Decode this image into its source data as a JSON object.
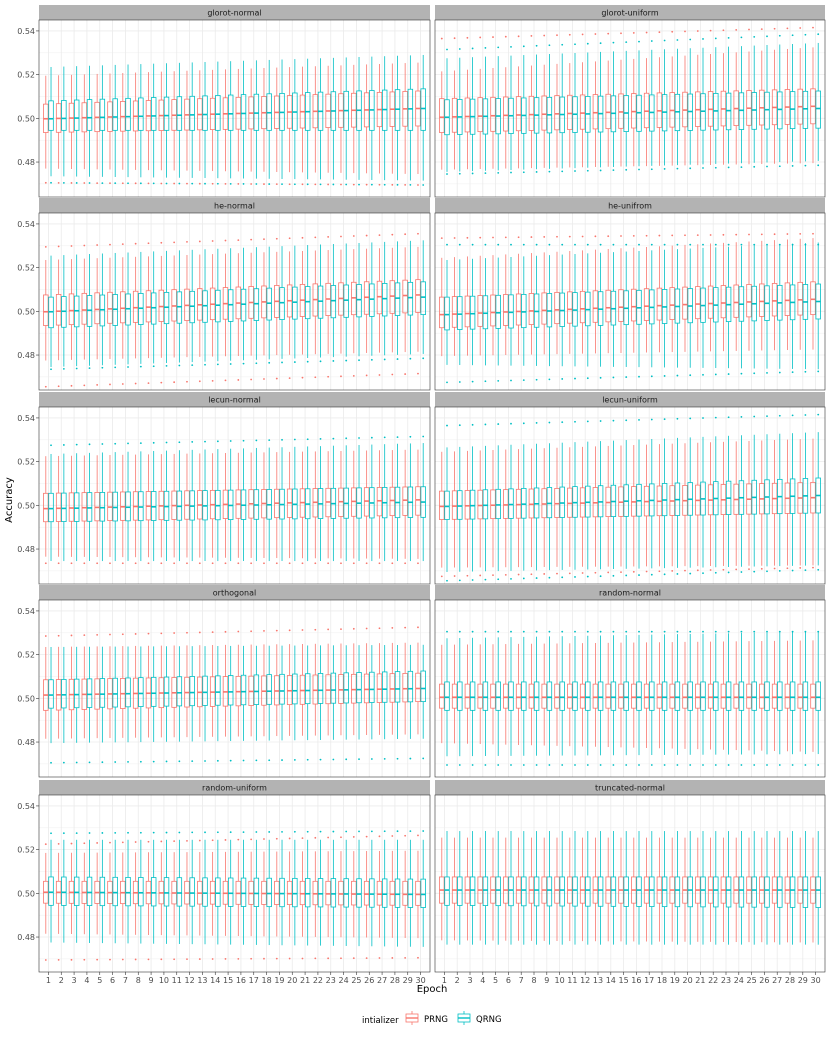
{
  "chart_data": {
    "type": "boxplot",
    "layout": "facet-grid-5x2",
    "xlabel": "Epoch",
    "ylabel": "Accuracy",
    "x_categories": [
      "1",
      "2",
      "3",
      "4",
      "5",
      "6",
      "7",
      "8",
      "9",
      "10",
      "11",
      "12",
      "13",
      "14",
      "15",
      "16",
      "17",
      "18",
      "19",
      "20",
      "21",
      "22",
      "23",
      "24",
      "25",
      "26",
      "27",
      "28",
      "29",
      "30"
    ],
    "y_ticks": [
      0.48,
      0.5,
      0.52,
      0.54
    ],
    "y_tick_labels": [
      "0.48",
      "0.50",
      "0.52",
      "0.54"
    ],
    "ylim": [
      0.464,
      0.545
    ],
    "grid": true,
    "legend": {
      "title": "intializer",
      "position": "bottom",
      "entries": [
        {
          "label": "PRNG",
          "color": "#F8766D"
        },
        {
          "label": "QRNG",
          "color": "#00BFC4"
        }
      ]
    },
    "colors": {
      "PRNG": "#F8766D",
      "QRNG": "#00BFC4",
      "strip": "#b3b3b3",
      "grid_major": "#ebebeb",
      "panel_border": "#333333"
    },
    "panels": [
      {
        "name": "glorot-normal",
        "PRNG": {
          "median": [
            0.4998,
            0.5045
          ],
          "q1": [
            0.4935,
            0.4965
          ],
          "q3": [
            0.5065,
            0.5125
          ],
          "lower": [
            0.477,
            0.4745
          ],
          "upper": [
            0.5195,
            0.5255
          ],
          "outliers_low": [
            0.4705,
            0.4695
          ],
          "outliers_high": []
        },
        "QRNG": {
          "median": [
            0.4998,
            0.5045
          ],
          "q1": [
            0.4945,
            0.4945
          ],
          "q3": [
            0.508,
            0.5135
          ],
          "lower": [
            0.4735,
            0.4715
          ],
          "upper": [
            0.5235,
            0.529
          ],
          "outliers_low": [
            0.4705,
            0.4695
          ],
          "outliers_high": []
        }
      },
      {
        "name": "glorot-uniform",
        "PRNG": {
          "median": [
            0.5005,
            0.5055
          ],
          "q1": [
            0.4935,
            0.4975
          ],
          "q3": [
            0.509,
            0.5135
          ],
          "lower": [
            0.4765,
            0.4795
          ],
          "upper": [
            0.5215,
            0.5325
          ],
          "outliers_low": [],
          "outliers_high": [
            0.5365,
            0.5415
          ]
        },
        "QRNG": {
          "median": [
            0.5005,
            0.5045
          ],
          "q1": [
            0.4925,
            0.4955
          ],
          "q3": [
            0.5085,
            0.5125
          ],
          "lower": [
            0.4755,
            0.4805
          ],
          "upper": [
            0.5275,
            0.5345
          ],
          "outliers_low": [
            0.4745,
            0.4785
          ],
          "outliers_high": [
            0.5315,
            0.5385
          ]
        }
      },
      {
        "name": "he-normal",
        "PRNG": {
          "median": [
            0.4998,
            0.5075
          ],
          "q1": [
            0.4935,
            0.4995
          ],
          "q3": [
            0.5075,
            0.5145
          ],
          "lower": [
            0.4775,
            0.4815
          ],
          "upper": [
            0.5235,
            0.5295
          ],
          "outliers_low": [
            0.4655,
            0.4715
          ],
          "outliers_high": [
            0.5295,
            0.5355
          ]
        },
        "QRNG": {
          "median": [
            0.4998,
            0.5065
          ],
          "q1": [
            0.4925,
            0.4985
          ],
          "q3": [
            0.5065,
            0.5135
          ],
          "lower": [
            0.4745,
            0.4805
          ],
          "upper": [
            0.5255,
            0.5325
          ],
          "outliers_low": [
            0.4735,
            0.4785
          ],
          "outliers_high": []
        }
      },
      {
        "name": "he-unifrom",
        "PRNG": {
          "median": [
            0.4985,
            0.5055
          ],
          "q1": [
            0.4925,
            0.4985
          ],
          "q3": [
            0.5065,
            0.5135
          ],
          "lower": [
            0.4795,
            0.4825
          ],
          "upper": [
            0.5245,
            0.5335
          ],
          "outliers_low": [],
          "outliers_high": [
            0.5335,
            0.5355
          ]
        },
        "QRNG": {
          "median": [
            0.4985,
            0.5045
          ],
          "q1": [
            0.4915,
            0.4965
          ],
          "q3": [
            0.5065,
            0.5125
          ],
          "lower": [
            0.4755,
            0.4735
          ],
          "upper": [
            0.5235,
            0.5315
          ],
          "outliers_low": [
            0.4675,
            0.4725
          ],
          "outliers_high": [
            0.5305,
            0.5305
          ]
        }
      },
      {
        "name": "lecun-normal",
        "PRNG": {
          "median": [
            0.4985,
            0.5025
          ],
          "q1": [
            0.4925,
            0.4955
          ],
          "q3": [
            0.5055,
            0.5085
          ],
          "lower": [
            0.4765,
            0.4755
          ],
          "upper": [
            0.5225,
            0.5255
          ],
          "outliers_low": [
            0.4735,
            0.4735
          ],
          "outliers_high": []
        },
        "QRNG": {
          "median": [
            0.4985,
            0.5015
          ],
          "q1": [
            0.4925,
            0.4945
          ],
          "q3": [
            0.5055,
            0.5085
          ],
          "lower": [
            0.4745,
            0.4745
          ],
          "upper": [
            0.5235,
            0.5285
          ],
          "outliers_low": [],
          "outliers_high": [
            0.5275,
            0.5315
          ]
        }
      },
      {
        "name": "lecun-uniform",
        "PRNG": {
          "median": [
            0.4995,
            0.5035
          ],
          "q1": [
            0.4935,
            0.4965
          ],
          "q3": [
            0.5065,
            0.5105
          ],
          "lower": [
            0.4715,
            0.4725
          ],
          "upper": [
            0.5245,
            0.5305
          ],
          "outliers_low": [
            0.4675,
            0.4715
          ],
          "outliers_high": []
        },
        "QRNG": {
          "median": [
            0.4995,
            0.5045
          ],
          "q1": [
            0.4935,
            0.4965
          ],
          "q3": [
            0.5065,
            0.5125
          ],
          "lower": [
            0.4695,
            0.4725
          ],
          "upper": [
            0.5265,
            0.5335
          ],
          "outliers_low": [
            0.4655,
            0.4705
          ],
          "outliers_high": [
            0.5365,
            0.5415
          ]
        }
      },
      {
        "name": "orthogonal",
        "PRNG": {
          "median": [
            0.5015,
            0.5045
          ],
          "q1": [
            0.4945,
            0.4985
          ],
          "q3": [
            0.5085,
            0.5115
          ],
          "lower": [
            0.4815,
            0.4835
          ],
          "upper": [
            0.5235,
            0.5255
          ],
          "outliers_low": [],
          "outliers_high": [
            0.5285,
            0.5325
          ]
        },
        "QRNG": {
          "median": [
            0.5015,
            0.5045
          ],
          "q1": [
            0.4955,
            0.4985
          ],
          "q3": [
            0.5085,
            0.5125
          ],
          "lower": [
            0.4795,
            0.4815
          ],
          "upper": [
            0.5235,
            0.5245
          ],
          "outliers_low": [
            0.4705,
            0.4725
          ],
          "outliers_high": []
        }
      },
      {
        "name": "random-normal",
        "PRNG": {
          "median": [
            0.5005,
            0.5005
          ],
          "q1": [
            0.4955,
            0.4955
          ],
          "q3": [
            0.5065,
            0.5065
          ],
          "lower": [
            0.4795,
            0.4755
          ],
          "upper": [
            0.5245,
            0.5265
          ],
          "outliers_low": [],
          "outliers_high": []
        },
        "QRNG": {
          "median": [
            0.5005,
            0.5005
          ],
          "q1": [
            0.4945,
            0.4945
          ],
          "q3": [
            0.5075,
            0.5075
          ],
          "lower": [
            0.4735,
            0.4745
          ],
          "upper": [
            0.5275,
            0.5305
          ],
          "outliers_low": [
            0.4695,
            0.4695
          ],
          "outliers_high": [
            0.5305,
            0.5305
          ]
        }
      },
      {
        "name": "random-uniform",
        "PRNG": {
          "median": [
            0.5005,
            0.4995
          ],
          "q1": [
            0.4955,
            0.4945
          ],
          "q3": [
            0.5055,
            0.5055
          ],
          "lower": [
            0.4815,
            0.4795
          ],
          "upper": [
            0.5185,
            0.5195
          ],
          "outliers_low": [
            0.4695,
            0.4705
          ],
          "outliers_high": [
            0.5225,
            0.5265
          ]
        },
        "QRNG": {
          "median": [
            0.5005,
            0.4995
          ],
          "q1": [
            0.4945,
            0.4935
          ],
          "q3": [
            0.5075,
            0.5065
          ],
          "lower": [
            0.4775,
            0.4755
          ],
          "upper": [
            0.5245,
            0.5245
          ],
          "outliers_low": [],
          "outliers_high": [
            0.5275,
            0.5285
          ]
        }
      },
      {
        "name": "truncated-normal",
        "PRNG": {
          "median": [
            0.5015,
            0.5015
          ],
          "q1": [
            0.4955,
            0.4955
          ],
          "q3": [
            0.5075,
            0.5075
          ],
          "lower": [
            0.4785,
            0.4775
          ],
          "upper": [
            0.5255,
            0.5255
          ],
          "outliers_low": [],
          "outliers_high": []
        },
        "QRNG": {
          "median": [
            0.5015,
            0.5015
          ],
          "q1": [
            0.4945,
            0.4935
          ],
          "q3": [
            0.5075,
            0.5075
          ],
          "lower": [
            0.4765,
            0.4765
          ],
          "upper": [
            0.5285,
            0.5285
          ],
          "outliers_low": [],
          "outliers_high": []
        }
      }
    ]
  }
}
